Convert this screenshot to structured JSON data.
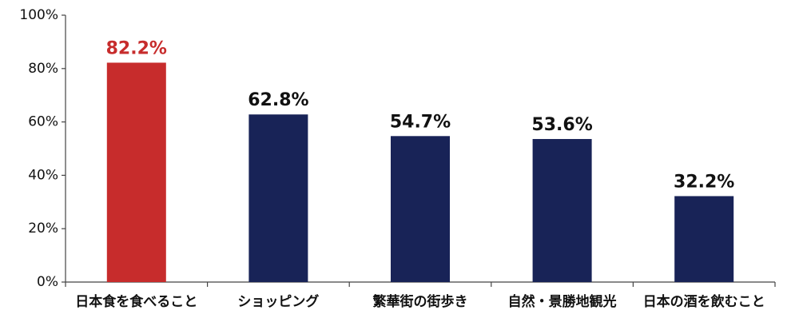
{
  "chart_data": {
    "type": "bar",
    "title": "",
    "xlabel": "",
    "ylabel": "",
    "categories": [
      "日本食を食べること",
      "ショッピング",
      "繁華街の街歩き",
      "自然・景勝地観光",
      "日本の酒を飲むこと"
    ],
    "values": [
      82.2,
      62.8,
      54.7,
      53.6,
      32.2
    ],
    "data_labels": [
      "82.2%",
      "62.8%",
      "54.7%",
      "53.6%",
      "32.2%"
    ],
    "ylim": [
      0,
      100
    ],
    "yticks": [
      0,
      20,
      40,
      60,
      80,
      100
    ],
    "ytick_labels": [
      "0%",
      "20%",
      "40%",
      "60%",
      "80%",
      "100%"
    ],
    "highlight_index": 0,
    "colors": {
      "bar": "#182357",
      "highlight_bar": "#c72c2c",
      "highlight_label": "#c72c2c",
      "label": "#111111",
      "axis": "#444444"
    },
    "grid": false,
    "legend": "none"
  }
}
